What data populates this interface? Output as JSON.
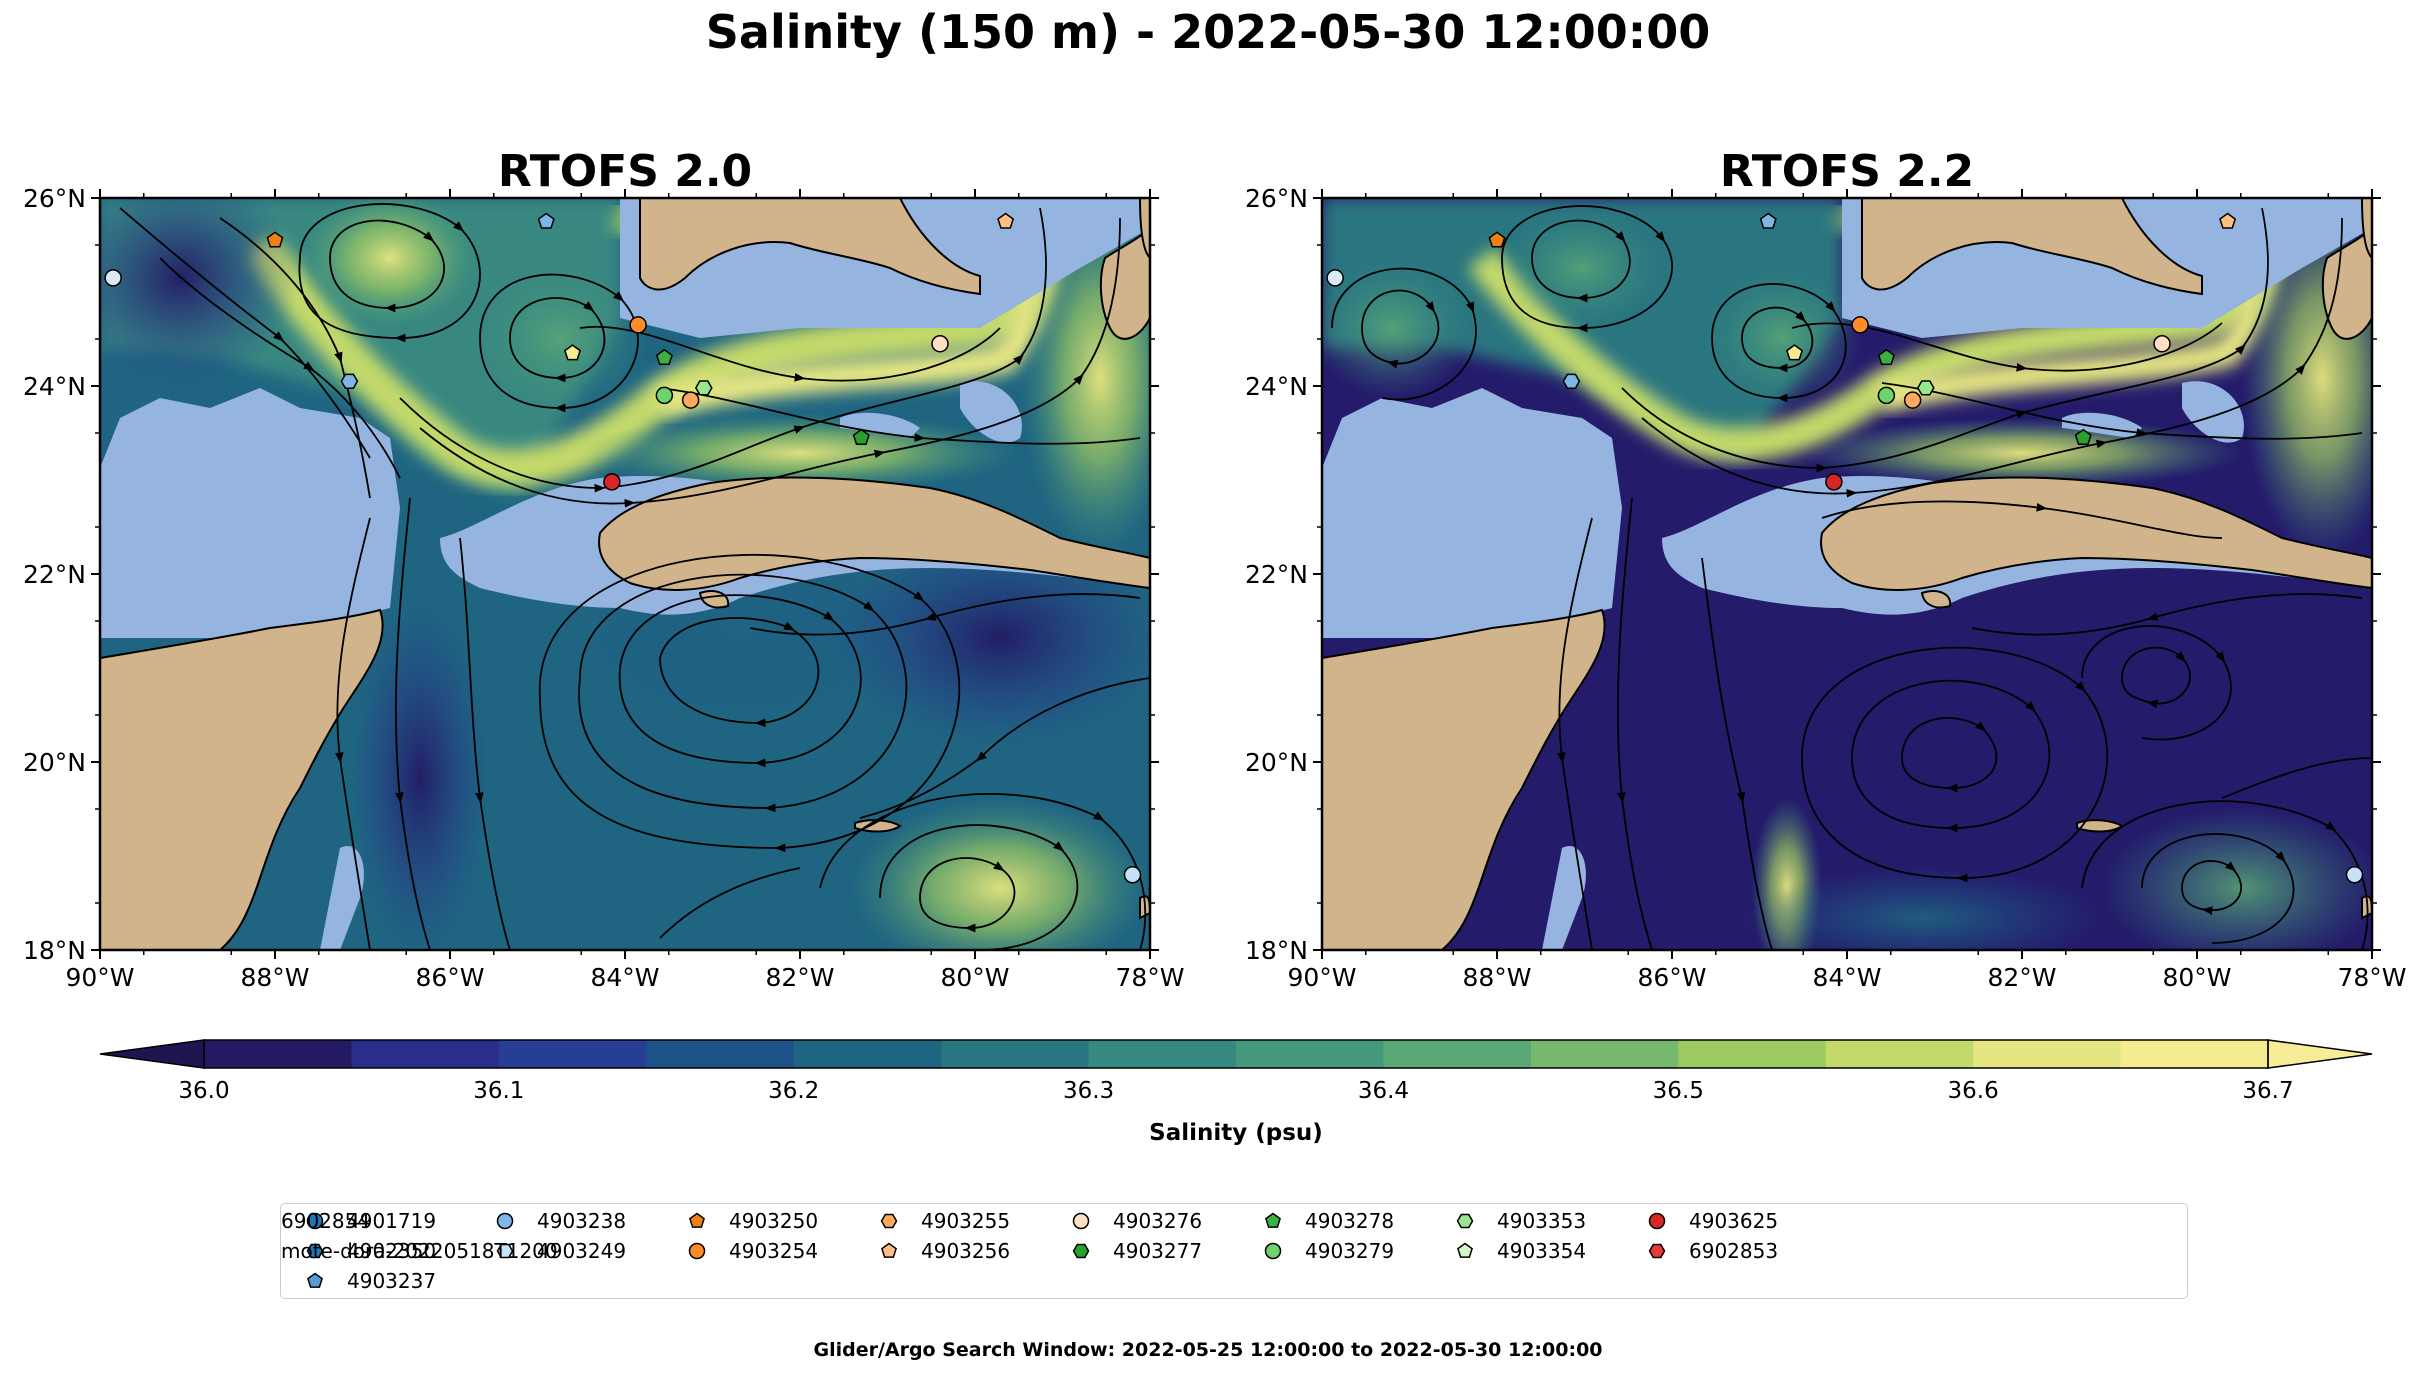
{
  "figure": {
    "title": "Salinity (150 m) - 2022-05-30 12:00:00",
    "footer": "Glider/Argo Search Window: 2022-05-25 12:00:00 to 2022-05-30 12:00:00"
  },
  "panels": [
    {
      "title": "RTOFS 2.0"
    },
    {
      "title": "RTOFS 2.2"
    }
  ],
  "axes": {
    "x_ticks": [
      "90°W",
      "88°W",
      "86°W",
      "84°W",
      "82°W",
      "80°W",
      "78°W"
    ],
    "y_ticks": [
      "26°N",
      "24°N",
      "22°N",
      "20°N",
      "18°N"
    ],
    "lon_range": [
      -90,
      -78
    ],
    "lat_range": [
      18,
      26
    ]
  },
  "colorbar": {
    "label": "Salinity (psu)",
    "ticks": [
      "36.0",
      "36.1",
      "36.2",
      "36.3",
      "36.4",
      "36.5",
      "36.6",
      "36.7"
    ],
    "range": [
      36.0,
      36.7
    ],
    "colors": [
      "#231a63",
      "#2a2d8a",
      "#263f95",
      "#1d5389",
      "#1f6581",
      "#2a7680",
      "#378881",
      "#45977d",
      "#5aa876",
      "#77b96c",
      "#9bc962",
      "#c3d96a",
      "#e5e682",
      "#f5eb8f"
    ],
    "under_color": "#1e1450",
    "over_color": "#f8ec96"
  },
  "map_colors": {
    "land": "#d2b48c",
    "shallow": "#95b5e0",
    "coast": "#000000"
  },
  "legend": {
    "items": [
      {
        "label": "4901719",
        "marker": "circle",
        "color": "#1f77b4"
      },
      {
        "label": "4902350",
        "marker": "hexagon",
        "color": "#1f77b4"
      },
      {
        "label": "4903237",
        "marker": "pentagon",
        "color": "#5b9bd5"
      },
      {
        "label": "4903238",
        "marker": "circle",
        "color": "#7fb6e6"
      },
      {
        "label": "4903249",
        "marker": "hexagon",
        "color": "#c7e2f7"
      },
      {
        "label": "4903250",
        "marker": "pentagon",
        "color": "#f07f14"
      },
      {
        "label": "4903254",
        "marker": "circle",
        "color": "#ff8c2a"
      },
      {
        "label": "4903255",
        "marker": "hexagon",
        "color": "#ffa860"
      },
      {
        "label": "4903256",
        "marker": "pentagon",
        "color": "#ffbf80"
      },
      {
        "label": "4903276",
        "marker": "circle",
        "color": "#ffe0c2"
      },
      {
        "label": "4903277",
        "marker": "hexagon",
        "color": "#2ca02c"
      },
      {
        "label": "4903278",
        "marker": "pentagon",
        "color": "#3cb043"
      },
      {
        "label": "4903279",
        "marker": "circle",
        "color": "#6fd36b"
      },
      {
        "label": "4903353",
        "marker": "hexagon",
        "color": "#9be58f"
      },
      {
        "label": "4903354",
        "marker": "pentagon",
        "color": "#d3f5c8"
      },
      {
        "label": "4903625",
        "marker": "circle",
        "color": "#d62728"
      },
      {
        "label": "6902853",
        "marker": "hexagon",
        "color": "#e8393a"
      },
      {
        "label": "6902854",
        "marker": "pentagon",
        "color": "#e57a7a"
      },
      {
        "label": "mote-dora-20220518T1200",
        "marker": "triangle-line",
        "color": "#1f77b4"
      }
    ]
  },
  "floats": [
    {
      "lon": -89.85,
      "lat": 25.15,
      "marker": "circle",
      "color": "#dbe9f6"
    },
    {
      "lon": -88.0,
      "lat": 25.55,
      "marker": "pentagon",
      "color": "#f07f14"
    },
    {
      "lon": -87.15,
      "lat": 24.05,
      "marker": "hexagon",
      "color": "#7fb6e6"
    },
    {
      "lon": -84.9,
      "lat": 25.75,
      "marker": "pentagon",
      "color": "#7fb6e6"
    },
    {
      "lon": -84.6,
      "lat": 24.35,
      "marker": "pentagon",
      "color": "#f5eb8f"
    },
    {
      "lon": -83.85,
      "lat": 24.65,
      "marker": "circle",
      "color": "#ff8c2a"
    },
    {
      "lon": -83.55,
      "lat": 24.3,
      "marker": "pentagon",
      "color": "#3cb043"
    },
    {
      "lon": -83.55,
      "lat": 23.9,
      "marker": "circle",
      "color": "#6fd36b"
    },
    {
      "lon": -83.25,
      "lat": 23.85,
      "marker": "circle",
      "color": "#ffa860"
    },
    {
      "lon": -83.1,
      "lat": 23.98,
      "marker": "hexagon",
      "color": "#9be58f"
    },
    {
      "lon": -84.15,
      "lat": 22.98,
      "marker": "circle",
      "color": "#d62728"
    },
    {
      "lon": -81.3,
      "lat": 23.45,
      "marker": "pentagon",
      "color": "#2ca02c"
    },
    {
      "lon": -80.4,
      "lat": 24.45,
      "marker": "circle",
      "color": "#ffe0c2"
    },
    {
      "lon": -79.65,
      "lat": 25.75,
      "marker": "pentagon",
      "color": "#ffbf80"
    },
    {
      "lon": -78.2,
      "lat": 18.8,
      "marker": "circle",
      "color": "#c7e2f7"
    }
  ]
}
